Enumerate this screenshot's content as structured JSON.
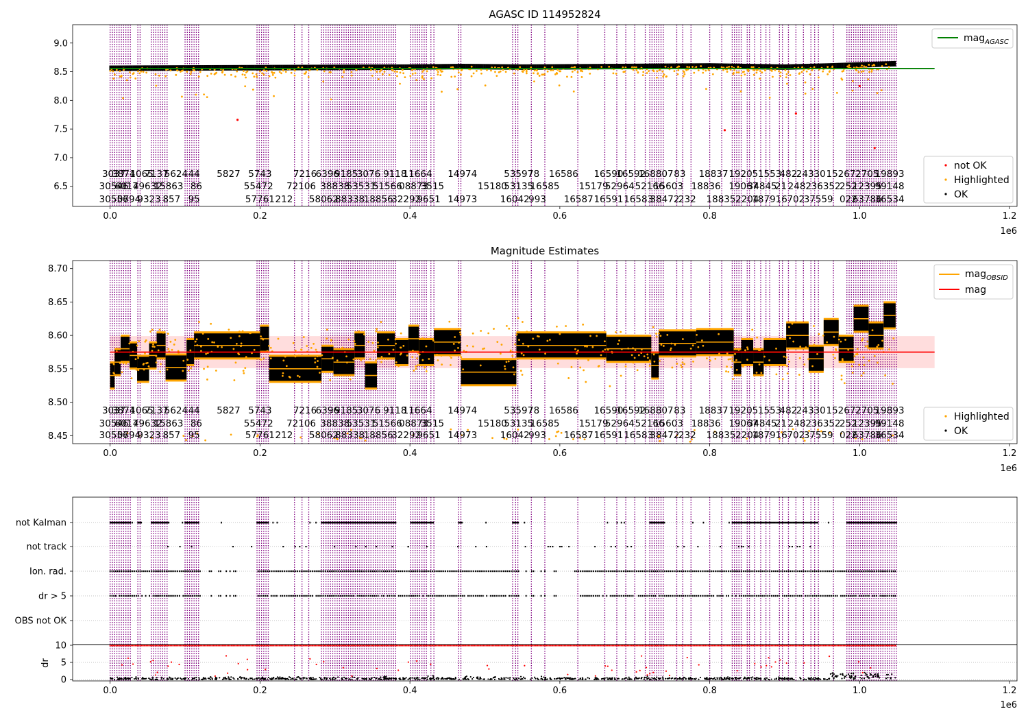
{
  "chart_data": [
    {
      "type": "scatter",
      "id": "agasc",
      "title": "AGASC ID 114952824",
      "xlim": [
        -50000,
        1210000
      ],
      "ylim": [
        6.15,
        9.32
      ],
      "x_offset_label": "1e6",
      "xticks": [
        0.0,
        0.2,
        0.4,
        0.6,
        0.8,
        1.0,
        1.2
      ],
      "xtick_labels": [
        "0.0",
        "0.2",
        "0.4",
        "0.6",
        "0.8",
        "1.0",
        "1.2"
      ],
      "yticks": [
        6.5,
        7.0,
        7.5,
        8.0,
        8.5,
        9.0
      ],
      "ytick_labels": [
        "6.5",
        "7.0",
        "7.5",
        "8.0",
        "8.5",
        "9.0"
      ],
      "reference_line": {
        "name": "mag_AGASC",
        "y": 8.555,
        "x_range": [
          0,
          1100000
        ],
        "color": "#008000"
      },
      "series": [
        {
          "name": "OK",
          "color": "#000000",
          "baseline": [
            [
              0,
              8.56
            ],
            [
              200000,
              8.57
            ],
            [
              400000,
              8.58
            ],
            [
              470000,
              8.59
            ],
            [
              550000,
              8.58
            ],
            [
              800000,
              8.6
            ],
            [
              900000,
              8.58
            ],
            [
              960000,
              8.6
            ],
            [
              1048000,
              8.64
            ]
          ]
        },
        {
          "name": "Highlighted",
          "color": "#FFA500"
        },
        {
          "name": "not OK",
          "color": "#FF0000",
          "points": [
            [
              170000,
              7.66
            ],
            [
              820000,
              7.48
            ],
            [
              915000,
              7.77
            ],
            [
              1000000,
              8.25
            ],
            [
              1020000,
              7.17
            ]
          ]
        }
      ],
      "legend_upper": [
        "mag_AGASC"
      ],
      "legend_lower": [
        "not OK",
        "Highlighted",
        "OK"
      ]
    },
    {
      "type": "scatter",
      "id": "estimates",
      "title": "Magnitude Estimates",
      "xlim": [
        -50000,
        1210000
      ],
      "ylim": [
        8.438,
        8.712
      ],
      "x_offset_label": "1e6",
      "xticks": [
        0.0,
        0.2,
        0.4,
        0.6,
        0.8,
        1.0,
        1.2
      ],
      "xtick_labels": [
        "0.0",
        "0.2",
        "0.4",
        "0.6",
        "0.8",
        "1.0",
        "1.2"
      ],
      "yticks": [
        8.45,
        8.5,
        8.55,
        8.6,
        8.65,
        8.7
      ],
      "ytick_labels": [
        "8.45",
        "8.50",
        "8.55",
        "8.60",
        "8.65",
        "8.70"
      ],
      "mag_line": {
        "name": "mag",
        "y": 8.575,
        "band": [
          8.551,
          8.599
        ],
        "x_range": [
          0,
          1100000
        ],
        "color": "#FF0000"
      },
      "obsid_segments": [
        [
          0,
          6000,
          8.54
        ],
        [
          6000,
          14000,
          8.56
        ],
        [
          14000,
          26000,
          8.58
        ],
        [
          26000,
          36000,
          8.57
        ],
        [
          36000,
          52000,
          8.55
        ],
        [
          52000,
          62000,
          8.57
        ],
        [
          62000,
          74000,
          8.585
        ],
        [
          74000,
          102000,
          8.552
        ],
        [
          102000,
          112000,
          8.575
        ],
        [
          112000,
          200000,
          8.585
        ],
        [
          200000,
          212000,
          8.595
        ],
        [
          212000,
          282000,
          8.55
        ],
        [
          282000,
          298000,
          8.565
        ],
        [
          298000,
          326000,
          8.56
        ],
        [
          326000,
          340000,
          8.585
        ],
        [
          340000,
          356000,
          8.54
        ],
        [
          356000,
          380000,
          8.585
        ],
        [
          380000,
          398000,
          8.575
        ],
        [
          398000,
          412000,
          8.595
        ],
        [
          412000,
          432000,
          8.575
        ],
        [
          432000,
          468000,
          8.59
        ],
        [
          468000,
          542000,
          8.545
        ],
        [
          542000,
          612000,
          8.585
        ],
        [
          612000,
          662000,
          8.585
        ],
        [
          662000,
          722000,
          8.58
        ],
        [
          722000,
          732000,
          8.555
        ],
        [
          732000,
          782000,
          8.588
        ],
        [
          782000,
          832000,
          8.59
        ],
        [
          832000,
          842000,
          8.56
        ],
        [
          842000,
          858000,
          8.575
        ],
        [
          858000,
          872000,
          8.56
        ],
        [
          872000,
          902000,
          8.575
        ],
        [
          902000,
          932000,
          8.6
        ],
        [
          932000,
          952000,
          8.565
        ],
        [
          952000,
          972000,
          8.605
        ],
        [
          972000,
          992000,
          8.58
        ],
        [
          992000,
          1012000,
          8.625
        ],
        [
          1012000,
          1032000,
          8.6
        ],
        [
          1032000,
          1048000,
          8.63
        ]
      ],
      "legend_upper": [
        "mag_OBSID",
        "mag"
      ],
      "legend_lower": [
        "Highlighted",
        "OK"
      ]
    },
    {
      "type": "scatter",
      "id": "flags",
      "title": "",
      "xlim": [
        -50000,
        1210000
      ],
      "x_offset_label": "1e6",
      "xticks": [
        0.0,
        0.2,
        0.4,
        0.6,
        0.8,
        1.0,
        1.2
      ],
      "xtick_labels": [
        "0.0",
        "0.2",
        "0.4",
        "0.6",
        "0.8",
        "1.0",
        "1.2"
      ],
      "flag_categories": [
        "not Kalman",
        "not track",
        "Ion. rad.",
        "dr > 5",
        "OBS not OK"
      ],
      "ylabel": "dr",
      "dr_yticks": [
        0,
        5,
        10
      ],
      "dr_ytick_labels": [
        "0",
        "5",
        "10"
      ],
      "dr_ylim": [
        -0.8,
        10.8
      ],
      "dr_clip_value": 10
    }
  ],
  "obsid_lines_x": [
    0,
    3000,
    6000,
    9000,
    12000,
    15000,
    18000,
    21000,
    24000,
    27000,
    37000,
    40000,
    55000,
    58000,
    61000,
    64000,
    67000,
    70000,
    73000,
    76000,
    100000,
    103000,
    106000,
    109000,
    112000,
    115000,
    118000,
    196000,
    199000,
    202000,
    205000,
    208000,
    211000,
    246000,
    256000,
    265000,
    282000,
    285000,
    288000,
    291000,
    294000,
    297000,
    300000,
    303000,
    306000,
    309000,
    312000,
    315000,
    318000,
    321000,
    324000,
    327000,
    330000,
    333000,
    336000,
    339000,
    342000,
    345000,
    348000,
    351000,
    354000,
    357000,
    360000,
    363000,
    366000,
    369000,
    372000,
    375000,
    378000,
    381000,
    401000,
    404000,
    407000,
    410000,
    413000,
    416000,
    419000,
    422000,
    428000,
    432000,
    465000,
    468000,
    537000,
    541000,
    544000,
    562000,
    580000,
    624000,
    660000,
    676000,
    688000,
    700000,
    714000,
    720000,
    723000,
    726000,
    729000,
    732000,
    735000,
    738000,
    756000,
    764000,
    775000,
    800000,
    816000,
    830000,
    833000,
    836000,
    839000,
    842000,
    850000,
    853000,
    860000,
    868000,
    875000,
    880000,
    893000,
    897000,
    905000,
    915000,
    925000,
    935000,
    940000,
    945000,
    965000,
    983000,
    986000,
    989000,
    992000,
    995000,
    998000,
    1001000,
    1004000,
    1007000,
    1010000,
    1013000,
    1016000,
    1019000,
    1022000,
    1025000,
    1028000,
    1031000,
    1034000,
    1037000,
    1040000,
    1043000,
    1046000,
    1049000
  ],
  "obsid_labels": [
    {
      "x": 5000,
      "row": 0,
      "text": "3037"
    },
    {
      "x": 18000,
      "row": 0,
      "text": "3874"
    },
    {
      "x": 42000,
      "row": 0,
      "text": "1065"
    },
    {
      "x": 62000,
      "row": 0,
      "text": "7137"
    },
    {
      "x": 88000,
      "row": 0,
      "text": "5624"
    },
    {
      "x": 112000,
      "row": 0,
      "text": "44"
    },
    {
      "x": 158000,
      "row": 0,
      "text": "5827"
    },
    {
      "x": 200000,
      "row": 0,
      "text": "5743"
    },
    {
      "x": 260000,
      "row": 0,
      "text": "7216"
    },
    {
      "x": 290000,
      "row": 0,
      "text": "6396"
    },
    {
      "x": 315000,
      "row": 0,
      "text": "9185"
    },
    {
      "x": 345000,
      "row": 0,
      "text": "3076"
    },
    {
      "x": 380000,
      "row": 0,
      "text": "9118"
    },
    {
      "x": 410000,
      "row": 0,
      "text": "11664"
    },
    {
      "x": 470000,
      "row": 0,
      "text": "14974"
    },
    {
      "x": 545000,
      "row": 0,
      "text": "53597"
    },
    {
      "x": 565000,
      "row": 0,
      "text": "78"
    },
    {
      "x": 605000,
      "row": 0,
      "text": "16586"
    },
    {
      "x": 665000,
      "row": 0,
      "text": "16590"
    },
    {
      "x": 695000,
      "row": 0,
      "text": "16592"
    },
    {
      "x": 728000,
      "row": 0,
      "text": "168807"
    },
    {
      "x": 760000,
      "row": 0,
      "text": "83"
    },
    {
      "x": 805000,
      "row": 0,
      "text": "18837"
    },
    {
      "x": 845000,
      "row": 0,
      "text": "19205"
    },
    {
      "x": 880000,
      "row": 0,
      "text": "1553"
    },
    {
      "x": 905000,
      "row": 0,
      "text": "482"
    },
    {
      "x": 935000,
      "row": 0,
      "text": "24330"
    },
    {
      "x": 975000,
      "row": 0,
      "text": "15267"
    },
    {
      "x": 1010000,
      "row": 0,
      "text": "2705"
    },
    {
      "x": 1040000,
      "row": 0,
      "text": "19893"
    },
    {
      "x": 5000,
      "row": 1,
      "text": "30546"
    },
    {
      "x": 22000,
      "row": 1,
      "text": "6017"
    },
    {
      "x": 50000,
      "row": 1,
      "text": "49632"
    },
    {
      "x": 78000,
      "row": 1,
      "text": "15863"
    },
    {
      "x": 115000,
      "row": 1,
      "text": "86"
    },
    {
      "x": 198000,
      "row": 1,
      "text": "55472"
    },
    {
      "x": 255000,
      "row": 1,
      "text": "72106"
    },
    {
      "x": 300000,
      "row": 1,
      "text": "38838"
    },
    {
      "x": 335000,
      "row": 1,
      "text": "53531"
    },
    {
      "x": 370000,
      "row": 1,
      "text": "51566"
    },
    {
      "x": 405000,
      "row": 1,
      "text": "08873"
    },
    {
      "x": 430000,
      "row": 1,
      "text": "3515"
    },
    {
      "x": 510000,
      "row": 1,
      "text": "15180"
    },
    {
      "x": 545000,
      "row": 1,
      "text": "53135"
    },
    {
      "x": 580000,
      "row": 1,
      "text": "16585"
    },
    {
      "x": 645000,
      "row": 1,
      "text": "15179"
    },
    {
      "x": 680000,
      "row": 1,
      "text": "52964"
    },
    {
      "x": 720000,
      "row": 1,
      "text": "52166"
    },
    {
      "x": 745000,
      "row": 1,
      "text": "15603"
    },
    {
      "x": 795000,
      "row": 1,
      "text": "18836"
    },
    {
      "x": 845000,
      "row": 1,
      "text": "19067"
    },
    {
      "x": 870000,
      "row": 1,
      "text": "34845"
    },
    {
      "x": 895000,
      "row": 1,
      "text": "21"
    },
    {
      "x": 920000,
      "row": 1,
      "text": "2482"
    },
    {
      "x": 955000,
      "row": 1,
      "text": "36352"
    },
    {
      "x": 985000,
      "row": 1,
      "text": "252"
    },
    {
      "x": 1010000,
      "row": 1,
      "text": "12395"
    },
    {
      "x": 1040000,
      "row": 1,
      "text": "99148"
    },
    {
      "x": 5000,
      "row": 2,
      "text": "30556"
    },
    {
      "x": 25000,
      "row": 2,
      "text": "0794"
    },
    {
      "x": 52000,
      "row": 2,
      "text": "9323"
    },
    {
      "x": 82000,
      "row": 2,
      "text": "857"
    },
    {
      "x": 112000,
      "row": 2,
      "text": "95"
    },
    {
      "x": 200000,
      "row": 2,
      "text": "57761"
    },
    {
      "x": 232000,
      "row": 2,
      "text": "212"
    },
    {
      "x": 285000,
      "row": 2,
      "text": "58062"
    },
    {
      "x": 320000,
      "row": 2,
      "text": "88338"
    },
    {
      "x": 358000,
      "row": 2,
      "text": "18856"
    },
    {
      "x": 395000,
      "row": 2,
      "text": "32292"
    },
    {
      "x": 425000,
      "row": 2,
      "text": "9651"
    },
    {
      "x": 470000,
      "row": 2,
      "text": "14973"
    },
    {
      "x": 540000,
      "row": 2,
      "text": "16042"
    },
    {
      "x": 570000,
      "row": 2,
      "text": "993"
    },
    {
      "x": 625000,
      "row": 2,
      "text": "16587"
    },
    {
      "x": 665000,
      "row": 2,
      "text": "16591"
    },
    {
      "x": 705000,
      "row": 2,
      "text": "16583"
    },
    {
      "x": 740000,
      "row": 2,
      "text": "38472"
    },
    {
      "x": 770000,
      "row": 2,
      "text": "232"
    },
    {
      "x": 815000,
      "row": 2,
      "text": "18835"
    },
    {
      "x": 850000,
      "row": 2,
      "text": "2204"
    },
    {
      "x": 880000,
      "row": 2,
      "text": "187916"
    },
    {
      "x": 915000,
      "row": 2,
      "text": "702"
    },
    {
      "x": 945000,
      "row": 2,
      "text": "37559"
    },
    {
      "x": 985000,
      "row": 2,
      "text": "022"
    },
    {
      "x": 1010000,
      "row": 2,
      "text": "63786"
    },
    {
      "x": 1040000,
      "row": 2,
      "text": "36534"
    }
  ],
  "colors": {
    "ok": "#000000",
    "highlighted": "#FFA500",
    "not_ok": "#FF0000",
    "agasc_line": "#008000",
    "mag_line": "#FF0000",
    "mag_band": "#FFD9D9",
    "obsid_line": "#FFA500",
    "obsid_vlines": "#800080",
    "grid": "#b0b0b0"
  },
  "legend_labels": {
    "mag_AGASC_main": "mag",
    "mag_AGASC_sub": "AGASC",
    "mag_OBSID_main": "mag",
    "mag_OBSID_sub": "OBSID",
    "mag": "mag",
    "not_ok": "not OK",
    "highlighted": "Highlighted",
    "ok": "OK"
  }
}
